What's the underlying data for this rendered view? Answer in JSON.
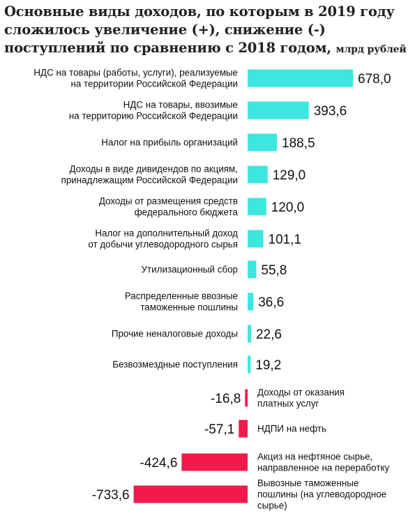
{
  "title": "Основные виды доходов, по которым в 2019 году сложилось увеличение (+), снижение (-) поступлений по сравнению с 2018 годом,",
  "unit": "млрд рублей",
  "chart_data": {
    "type": "bar",
    "orientation": "horizontal",
    "title": "Основные виды доходов, по которым в 2019 году сложилось увеличение (+), снижение (-) поступлений по сравнению с 2018 годом,",
    "unit": "млрд рублей",
    "colors": {
      "positive": "#3de6df",
      "negative": "#f21a4a"
    },
    "categories": [
      [
        "НДС на товары (работы, услуги), реализуемые",
        "на территории Российской Федерации"
      ],
      [
        "НДС на товары, ввозимые",
        "на территорию Российской Федерации"
      ],
      [
        "Налог на прибыль организаций"
      ],
      [
        "Доходы в виде дивидендов по акциям,",
        "принадлежащим Российской Федерации"
      ],
      [
        "Доходы от размещения средств",
        "федерального бюджета"
      ],
      [
        "Налог на дополнительный доход",
        "от добычи углеводородного сырья"
      ],
      [
        "Утилизационный сбор"
      ],
      [
        "Распределенные ввозные",
        "таможенные пошлины"
      ],
      [
        "Прочие неналоговые доходы"
      ],
      [
        "Безвозмездные поступления"
      ],
      [
        "Доходы от оказания",
        "платных услуг"
      ],
      [
        "НДПИ на нефть"
      ],
      [
        "Акциз на нефтяное сырье,",
        "направленное на переработку"
      ],
      [
        "Вывозные таможенные",
        "пошлины (на углеводородное",
        "сырье)"
      ]
    ],
    "values": [
      678.0,
      393.6,
      188.5,
      129.0,
      120.0,
      101.1,
      55.8,
      36.6,
      22.6,
      19.2,
      -16.8,
      -57.1,
      -424.6,
      -733.6
    ],
    "value_labels": [
      "678,0",
      "393,6",
      "188,5",
      "129,0",
      "120,0",
      "101,1",
      "55,8",
      "36,6",
      "22,6",
      "19,2",
      "-16,8",
      "-57,1",
      "-424,6",
      "-733,6"
    ]
  }
}
